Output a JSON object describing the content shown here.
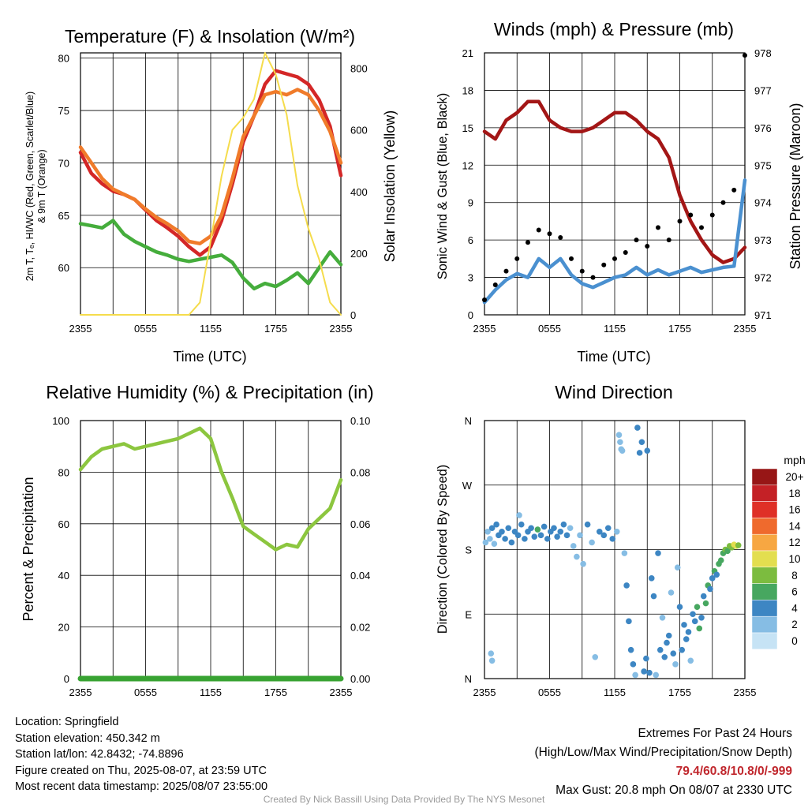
{
  "panels": {
    "temperature": {
      "title": "Temperature (F) & Insolation (W/m²)",
      "ylabel_left_1": "2m T, Tₑ, HI/WC (Red, Green, Scarlet/Blue)",
      "ylabel_left_2": "& 9m T (Orange)",
      "ylabel_right": "Solar Insolation (Yellow)",
      "xlabel": "Time (UTC)"
    },
    "winds": {
      "title": "Winds (mph) & Pressure (mb)",
      "ylabel_left": "Sonic Wind & Gust (Blue, Black)",
      "ylabel_right": "Station Pressure (Maroon)",
      "xlabel": "Time (UTC)"
    },
    "humidity": {
      "title": "Relative Humidity (%) & Precipitation (in)",
      "ylabel_left": "Percent & Precipitation"
    },
    "direction": {
      "title": "Wind Direction",
      "ylabel_left": "Direction (Colored By Speed)",
      "legend_title": "mph"
    }
  },
  "info": {
    "location": "Location: Springfield",
    "elevation": "Station elevation: 450.342 m",
    "latlon": "Station lat/lon: 42.8432; -74.8896",
    "created": "Figure created on Thu, 2025-08-07, at 23:59 UTC",
    "recent": "Most recent data timestamp: 2025/08/07 23:55:00"
  },
  "extremes": {
    "title": "Extremes For Past 24 Hours",
    "subtitle": "(High/Low/Max Wind/Precipitation/Snow Depth)",
    "values": "79.4/60.8/10.8/0/-999",
    "max_gust": "Max Gust: 20.8 mph On 08/07 at 2330 UTC"
  },
  "credit": "Created By Nick Bassill Using Data Provided By The NYS Mesonet",
  "colors": {
    "temp": "#d42727",
    "temp_9m": "#f07b2a",
    "dewpoint": "#45ad3c",
    "insolation": "#f5dc4c",
    "wind": "#4a90d0",
    "gust": "#000000",
    "pressure": "#a31616",
    "rh": "#8cc63f",
    "precip": "#38a332"
  },
  "chart_data": [
    {
      "type": "line",
      "id": "temperature",
      "x_ticks": [
        "2355",
        "0555",
        "1155",
        "1755",
        "2355"
      ],
      "x": [
        0,
        1,
        2,
        3,
        4,
        5,
        6,
        7,
        8,
        9,
        10,
        11,
        12,
        13,
        14,
        15,
        16,
        17,
        18,
        19,
        20,
        21,
        22,
        23,
        24
      ],
      "ylim": [
        55.5,
        80.5
      ],
      "y_ticks": [
        60,
        65,
        70,
        75,
        80
      ],
      "y2lim": [
        0,
        850
      ],
      "y2_ticks": [
        0,
        200,
        400,
        600,
        800
      ],
      "series": [
        {
          "name": "2m T",
          "axis": "left",
          "color": "#d42727",
          "values": [
            71,
            69,
            68,
            67.3,
            67,
            66.5,
            65.5,
            64.5,
            63.8,
            63,
            62,
            61.2,
            62,
            64.5,
            68,
            72,
            74.5,
            77.5,
            78.8,
            78.5,
            78.2,
            77.5,
            76,
            73.5,
            68.8
          ]
        },
        {
          "name": "9m T",
          "axis": "left",
          "color": "#f07b2a",
          "values": [
            71.5,
            70,
            68.5,
            67.5,
            67,
            66.5,
            65.6,
            64.8,
            64.2,
            63.5,
            62.5,
            62.3,
            63,
            65,
            68.5,
            72.5,
            74.5,
            76.5,
            76.8,
            76.5,
            77,
            76.5,
            75,
            73,
            70
          ]
        },
        {
          "name": "Td",
          "axis": "left",
          "color": "#45ad3c",
          "values": [
            64.2,
            64,
            63.8,
            64.5,
            63.2,
            62.5,
            62,
            61.5,
            61.2,
            60.8,
            60.6,
            60.8,
            61,
            61.2,
            60.5,
            59,
            58,
            58.5,
            58.2,
            58.8,
            59.5,
            58.5,
            60,
            61.5,
            60.3
          ]
        },
        {
          "name": "Insolation",
          "axis": "right",
          "color": "#f5dc4c",
          "values": [
            0,
            0,
            0,
            0,
            0,
            0,
            0,
            0,
            0,
            0,
            0,
            40,
            240,
            450,
            600,
            640,
            700,
            850,
            780,
            650,
            420,
            280,
            180,
            40,
            0
          ]
        }
      ]
    },
    {
      "type": "line",
      "id": "winds",
      "x_ticks": [
        "2355",
        "0555",
        "1155",
        "1755",
        "2355"
      ],
      "x": [
        0,
        1,
        2,
        3,
        4,
        5,
        6,
        7,
        8,
        9,
        10,
        11,
        12,
        13,
        14,
        15,
        16,
        17,
        18,
        19,
        20,
        21,
        22,
        23,
        24
      ],
      "ylim": [
        0,
        21
      ],
      "y_ticks": [
        0,
        3,
        6,
        9,
        12,
        15,
        18,
        21
      ],
      "y2lim": [
        971,
        978
      ],
      "y2_ticks": [
        971,
        972,
        973,
        974,
        975,
        976,
        977,
        978
      ],
      "series": [
        {
          "name": "Pressure",
          "axis": "right",
          "color": "#a31616",
          "values": [
            975.9,
            975.7,
            976.2,
            976.4,
            976.7,
            976.7,
            976.2,
            976.0,
            975.9,
            975.9,
            976.0,
            976.2,
            976.4,
            976.4,
            976.2,
            975.9,
            975.7,
            975.2,
            974.2,
            973.5,
            973.0,
            972.6,
            972.4,
            972.5,
            972.8
          ]
        },
        {
          "name": "Sonic Wind",
          "axis": "left",
          "color": "#4a90d0",
          "values": [
            1.0,
            2.0,
            2.8,
            3.3,
            3.0,
            4.5,
            3.8,
            4.5,
            3.2,
            2.5,
            2.2,
            2.6,
            3.0,
            3.2,
            3.8,
            3.2,
            3.6,
            3.2,
            3.5,
            3.8,
            3.4,
            3.6,
            3.8,
            3.9,
            10.8
          ]
        },
        {
          "name": "Gust",
          "axis": "left",
          "color": "#000000",
          "values": [
            1.2,
            2.4,
            3.5,
            4.5,
            5.8,
            6.8,
            6.5,
            6.2,
            4.5,
            3.5,
            3.0,
            4.0,
            4.5,
            5.0,
            6.0,
            5.5,
            7.0,
            6.0,
            7.5,
            8.0,
            7.0,
            8.0,
            9.0,
            10.0,
            20.8
          ]
        }
      ]
    },
    {
      "type": "line",
      "id": "humidity",
      "x_ticks": [
        "2355",
        "0555",
        "1155",
        "1755",
        "2355"
      ],
      "x": [
        0,
        1,
        2,
        3,
        4,
        5,
        6,
        7,
        8,
        9,
        10,
        11,
        12,
        13,
        14,
        15,
        16,
        17,
        18,
        19,
        20,
        21,
        22,
        23,
        24
      ],
      "ylim": [
        0,
        100
      ],
      "y_ticks": [
        0,
        20,
        40,
        60,
        80,
        100
      ],
      "y2lim": [
        0,
        0.1
      ],
      "y2_ticks": [
        "0.00",
        "0.02",
        "0.04",
        "0.06",
        "0.08",
        "0.10"
      ],
      "series": [
        {
          "name": "RH",
          "axis": "left",
          "color": "#8cc63f",
          "values": [
            81,
            86,
            89,
            90,
            91,
            89,
            90,
            91,
            92,
            93,
            95,
            97,
            93,
            80,
            70,
            59,
            56,
            53,
            50,
            52,
            51,
            58,
            62,
            66,
            77
          ]
        },
        {
          "name": "Precip",
          "axis": "right",
          "color": "#38a332",
          "values": [
            0,
            0,
            0,
            0,
            0,
            0,
            0,
            0,
            0,
            0,
            0,
            0,
            0,
            0,
            0,
            0,
            0,
            0,
            0,
            0,
            0,
            0,
            0,
            0,
            0
          ]
        }
      ]
    },
    {
      "type": "scatter",
      "id": "direction",
      "x_ticks": [
        "2355",
        "0555",
        "1155",
        "1755",
        "2355"
      ],
      "y_ticks": [
        "N",
        "E",
        "S",
        "W",
        "N"
      ],
      "ylim": [
        0,
        360
      ],
      "legend": {
        "title": "mph",
        "labels": [
          "20+",
          "18",
          "16",
          "14",
          "12",
          "10",
          "8",
          "6",
          "4",
          "2",
          "0"
        ],
        "colors": [
          "#971616",
          "#c42126",
          "#df3027",
          "#ef6a2d",
          "#f7a742",
          "#e3de4f",
          "#7cbc3f",
          "#47a760",
          "#3d86c3",
          "#86bde4",
          "#c6e3f5"
        ]
      },
      "points": [
        {
          "x": 0.1,
          "dir": 190,
          "speed": 1
        },
        {
          "x": 0.3,
          "dir": 205,
          "speed": 2
        },
        {
          "x": 0.5,
          "dir": 195,
          "speed": 2
        },
        {
          "x": 0.7,
          "dir": 210,
          "speed": 3
        },
        {
          "x": 0.9,
          "dir": 188,
          "speed": 2
        },
        {
          "x": 1.1,
          "dir": 215,
          "speed": 3
        },
        {
          "x": 1.3,
          "dir": 200,
          "speed": 3
        },
        {
          "x": 0.6,
          "dir": 35,
          "speed": 1
        },
        {
          "x": 0.7,
          "dir": 25,
          "speed": 1
        },
        {
          "x": 1.6,
          "dir": 205,
          "speed": 3
        },
        {
          "x": 1.9,
          "dir": 195,
          "speed": 3
        },
        {
          "x": 2.2,
          "dir": 210,
          "speed": 4
        },
        {
          "x": 2.5,
          "dir": 190,
          "speed": 3
        },
        {
          "x": 2.8,
          "dir": 205,
          "speed": 3
        },
        {
          "x": 3.1,
          "dir": 200,
          "speed": 4
        },
        {
          "x": 3.4,
          "dir": 215,
          "speed": 4
        },
        {
          "x": 3.7,
          "dir": 195,
          "speed": 4
        },
        {
          "x": 4.0,
          "dir": 205,
          "speed": 3
        },
        {
          "x": 4.3,
          "dir": 210,
          "speed": 4
        },
        {
          "x": 4.6,
          "dir": 198,
          "speed": 4
        },
        {
          "x": 4.9,
          "dir": 208,
          "speed": 5
        },
        {
          "x": 5.2,
          "dir": 200,
          "speed": 4
        },
        {
          "x": 5.5,
          "dir": 212,
          "speed": 4
        },
        {
          "x": 5.8,
          "dir": 195,
          "speed": 3
        },
        {
          "x": 3.2,
          "dir": 228,
          "speed": 2
        },
        {
          "x": 6.1,
          "dir": 205,
          "speed": 4
        },
        {
          "x": 6.4,
          "dir": 210,
          "speed": 4
        },
        {
          "x": 6.7,
          "dir": 198,
          "speed": 3
        },
        {
          "x": 7.0,
          "dir": 205,
          "speed": 3
        },
        {
          "x": 7.3,
          "dir": 215,
          "speed": 3
        },
        {
          "x": 7.6,
          "dir": 200,
          "speed": 3
        },
        {
          "x": 7.9,
          "dir": 210,
          "speed": 2
        },
        {
          "x": 8.2,
          "dir": 185,
          "speed": 2
        },
        {
          "x": 8.5,
          "dir": 170,
          "speed": 2
        },
        {
          "x": 8.8,
          "dir": 200,
          "speed": 2
        },
        {
          "x": 9.1,
          "dir": 160,
          "speed": 2
        },
        {
          "x": 9.5,
          "dir": 215,
          "speed": 3
        },
        {
          "x": 9.9,
          "dir": 190,
          "speed": 2
        },
        {
          "x": 10.2,
          "dir": 30,
          "speed": 2
        },
        {
          "x": 10.6,
          "dir": 205,
          "speed": 3
        },
        {
          "x": 11.0,
          "dir": 200,
          "speed": 3
        },
        {
          "x": 11.4,
          "dir": 210,
          "speed": 3
        },
        {
          "x": 11.8,
          "dir": 195,
          "speed": 3
        },
        {
          "x": 12.2,
          "dir": 205,
          "speed": 2
        },
        {
          "x": 12.4,
          "dir": 340,
          "speed": 2
        },
        {
          "x": 12.5,
          "dir": 330,
          "speed": 2
        },
        {
          "x": 12.6,
          "dir": 320,
          "speed": 2
        },
        {
          "x": 12.7,
          "dir": 318,
          "speed": 1
        },
        {
          "x": 12.9,
          "dir": 175,
          "speed": 2
        },
        {
          "x": 13.1,
          "dir": 130,
          "speed": 3
        },
        {
          "x": 13.3,
          "dir": 80,
          "speed": 3
        },
        {
          "x": 13.5,
          "dir": 40,
          "speed": 3
        },
        {
          "x": 13.7,
          "dir": 20,
          "speed": 4
        },
        {
          "x": 13.9,
          "dir": 5,
          "speed": 2
        },
        {
          "x": 14.1,
          "dir": 350,
          "speed": 3
        },
        {
          "x": 14.3,
          "dir": 315,
          "speed": 3
        },
        {
          "x": 14.5,
          "dir": 330,
          "speed": 4
        },
        {
          "x": 14.7,
          "dir": 10,
          "speed": 4
        },
        {
          "x": 14.9,
          "dir": 28,
          "speed": 3
        },
        {
          "x": 15.0,
          "dir": 318,
          "speed": 4
        },
        {
          "x": 15.2,
          "dir": 8,
          "speed": 3
        },
        {
          "x": 15.4,
          "dir": 140,
          "speed": 3
        },
        {
          "x": 15.6,
          "dir": 115,
          "speed": 3
        },
        {
          "x": 15.8,
          "dir": 5,
          "speed": 2
        },
        {
          "x": 16.0,
          "dir": 175,
          "speed": 3
        },
        {
          "x": 16.2,
          "dir": 40,
          "speed": 3
        },
        {
          "x": 16.4,
          "dir": 85,
          "speed": 2
        },
        {
          "x": 16.6,
          "dir": 30,
          "speed": 3
        },
        {
          "x": 16.8,
          "dir": 50,
          "speed": 3
        },
        {
          "x": 17.0,
          "dir": 60,
          "speed": 3
        },
        {
          "x": 17.2,
          "dir": 120,
          "speed": 2
        },
        {
          "x": 17.4,
          "dir": 35,
          "speed": 3
        },
        {
          "x": 17.6,
          "dir": 20,
          "speed": 2
        },
        {
          "x": 17.8,
          "dir": 155,
          "speed": 2
        },
        {
          "x": 18.0,
          "dir": 100,
          "speed": 3
        },
        {
          "x": 18.2,
          "dir": 40,
          "speed": 3
        },
        {
          "x": 18.4,
          "dir": 75,
          "speed": 4
        },
        {
          "x": 18.6,
          "dir": 55,
          "speed": 3
        },
        {
          "x": 18.8,
          "dir": 65,
          "speed": 3
        },
        {
          "x": 19.0,
          "dir": 25,
          "speed": 2
        },
        {
          "x": 19.2,
          "dir": 90,
          "speed": 4
        },
        {
          "x": 19.4,
          "dir": 80,
          "speed": 4
        },
        {
          "x": 19.6,
          "dir": 100,
          "speed": 5
        },
        {
          "x": 19.8,
          "dir": 70,
          "speed": 5
        },
        {
          "x": 20.0,
          "dir": 85,
          "speed": 4
        },
        {
          "x": 20.2,
          "dir": 115,
          "speed": 4
        },
        {
          "x": 20.4,
          "dir": 105,
          "speed": 5
        },
        {
          "x": 20.6,
          "dir": 130,
          "speed": 6
        },
        {
          "x": 20.8,
          "dir": 125,
          "speed": 4
        },
        {
          "x": 21.0,
          "dir": 140,
          "speed": 4
        },
        {
          "x": 21.2,
          "dir": 150,
          "speed": 6
        },
        {
          "x": 21.4,
          "dir": 145,
          "speed": 4
        },
        {
          "x": 21.6,
          "dir": 160,
          "speed": 5
        },
        {
          "x": 21.8,
          "dir": 165,
          "speed": 5
        },
        {
          "x": 22.0,
          "dir": 175,
          "speed": 6
        },
        {
          "x": 22.2,
          "dir": 180,
          "speed": 8
        },
        {
          "x": 22.4,
          "dir": 178,
          "speed": 6
        },
        {
          "x": 22.6,
          "dir": 185,
          "speed": 7
        },
        {
          "x": 22.8,
          "dir": 183,
          "speed": 8
        },
        {
          "x": 23.0,
          "dir": 187,
          "speed": 9
        },
        {
          "x": 23.2,
          "dir": 185,
          "speed": 10
        },
        {
          "x": 23.4,
          "dir": 186,
          "speed": 8
        }
      ]
    }
  ]
}
